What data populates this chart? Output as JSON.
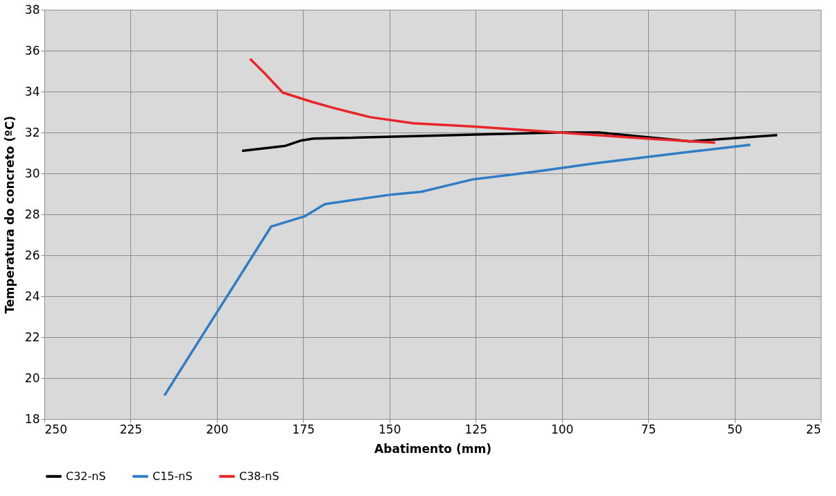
{
  "chart_data": {
    "type": "line",
    "xlabel": "Abatimento (mm)",
    "ylabel": "Temperatura do concreto (ºC)",
    "xlim": [
      250,
      25
    ],
    "xticks": [
      250,
      225,
      200,
      175,
      150,
      125,
      100,
      75,
      50,
      25
    ],
    "ylim": [
      18,
      38
    ],
    "yticks": [
      18,
      20,
      22,
      24,
      26,
      28,
      30,
      32,
      34,
      36,
      38
    ],
    "grid": true,
    "legend": "bottom",
    "marker": "none",
    "line_style": "solid",
    "series": [
      {
        "name": "C32-nS",
        "color": "#000000",
        "x": [
          192.7,
          180.1,
          175.8,
          172,
          100.8,
          89.3,
          62.9,
          37.6
        ],
        "values": [
          31.1,
          31.35,
          31.6,
          31.7,
          32.0,
          32.0,
          31.57,
          31.87
        ]
      },
      {
        "name": "C15-nS",
        "color": "#2f7dc4",
        "x": [
          215.2,
          184.3,
          174.6,
          168.7,
          149.3,
          140.8,
          126.1,
          107.1,
          90.2,
          60.7,
          45.4
        ],
        "values": [
          19.15,
          27.4,
          27.9,
          28.5,
          28.97,
          29.1,
          29.7,
          30.1,
          30.5,
          31.1,
          31.4
        ]
      },
      {
        "name": "C38-nS",
        "color": "#e8262a",
        "x": [
          190.4,
          186.2,
          180.9,
          172.5,
          166.2,
          155.6,
          143,
          126.1,
          100.8,
          75.6,
          55.6
        ],
        "values": [
          35.6,
          34.9,
          33.95,
          33.5,
          33.2,
          32.75,
          32.45,
          32.3,
          32.0,
          31.7,
          31.5
        ]
      }
    ]
  }
}
